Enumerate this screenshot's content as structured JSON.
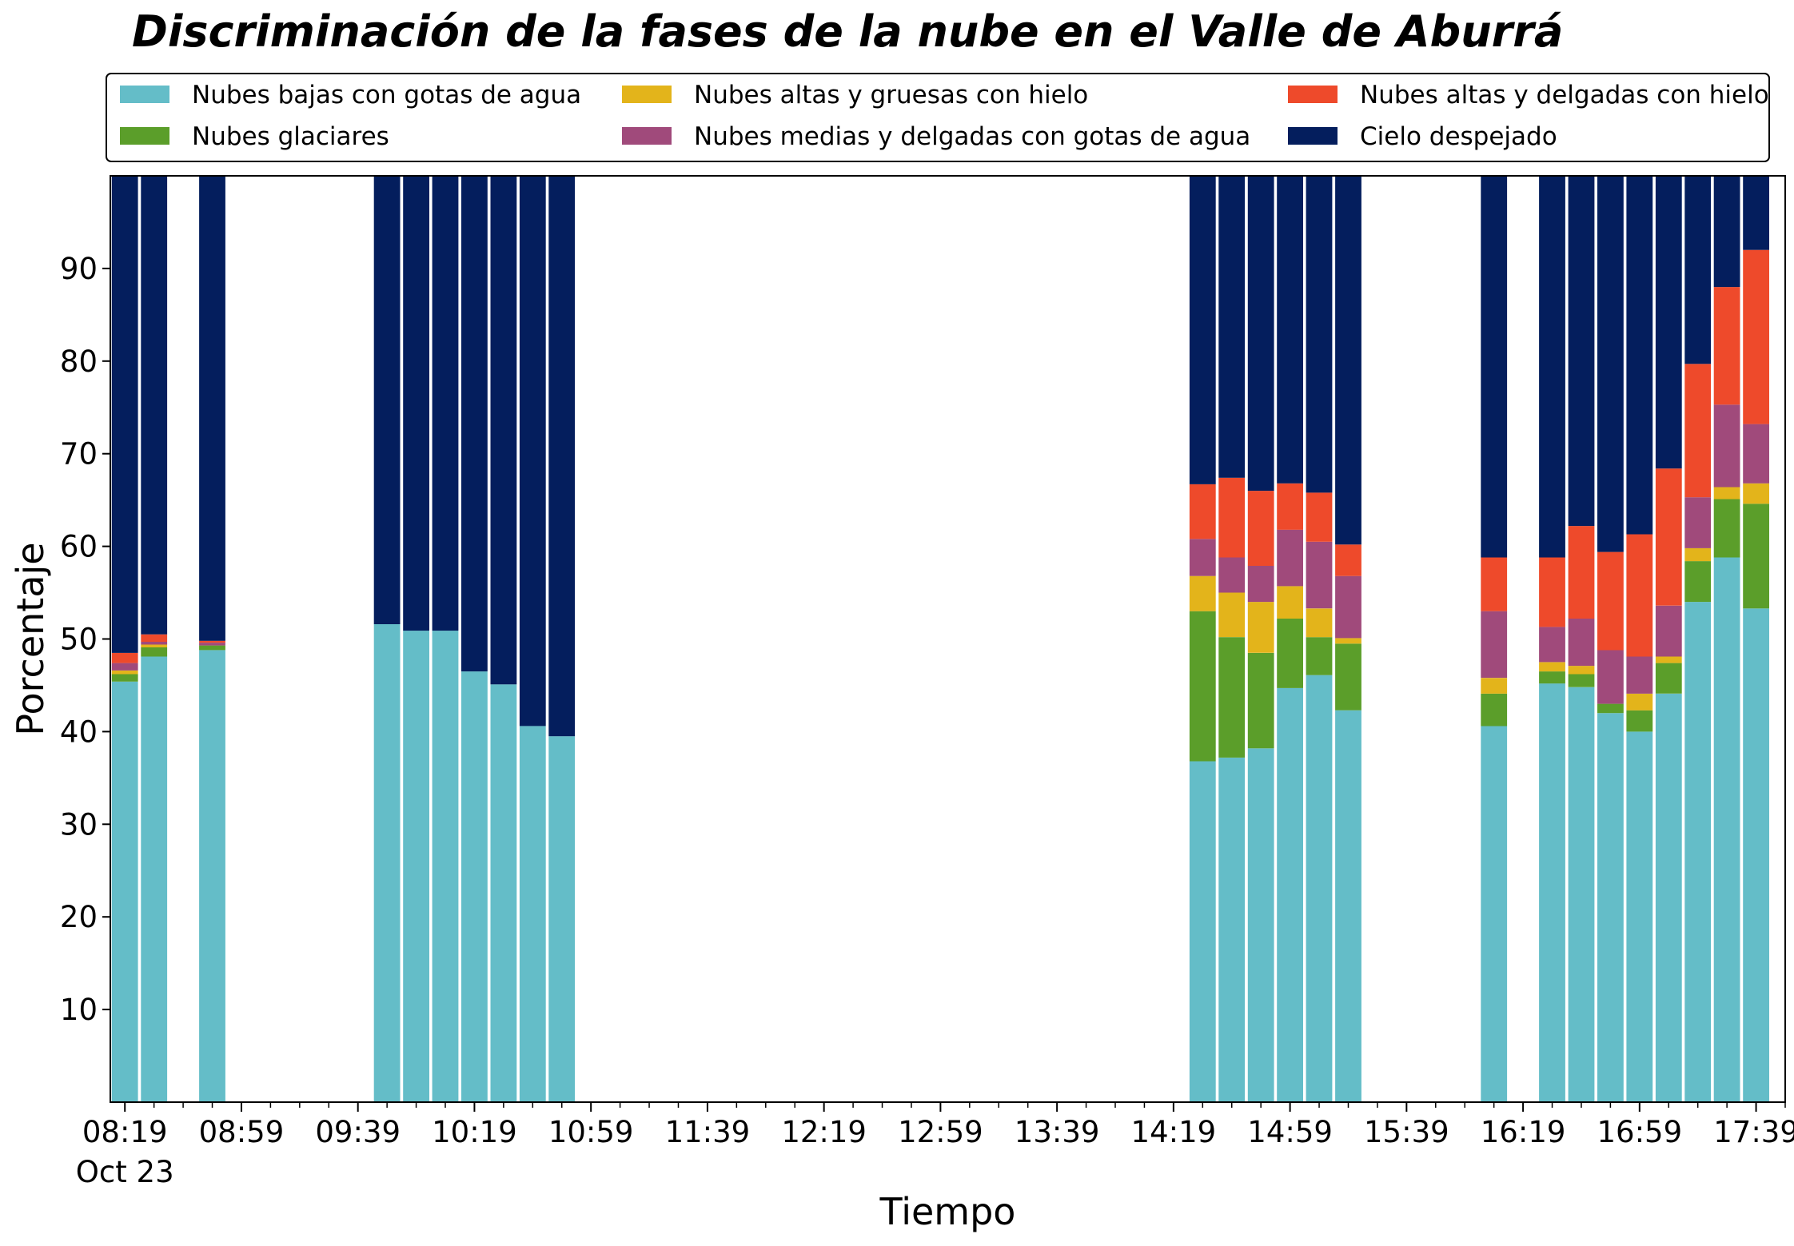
{
  "chart_data": {
    "type": "bar",
    "stacked": true,
    "title": "Discriminación de la fases de la nube en el Valle de Aburrá",
    "xlabel": "Tiempo",
    "ylabel": "Porcentaje",
    "ylim": [
      0,
      100
    ],
    "yticks": [
      10,
      20,
      30,
      40,
      50,
      60,
      70,
      80,
      90
    ],
    "xlim": [
      "08:14",
      "17:49"
    ],
    "xticks": [
      "08:19",
      "08:59",
      "09:39",
      "10:19",
      "10:59",
      "11:39",
      "12:19",
      "12:59",
      "13:39",
      "14:19",
      "14:59",
      "15:39",
      "16:19",
      "16:59",
      "17:39"
    ],
    "xtick_sublabel": "Oct 23",
    "minor_tick_step_minutes": 10,
    "bar_width_minutes": 9,
    "grid": false,
    "legend_position": "top",
    "legend_columns": 3,
    "times": [
      "08:19",
      "08:29",
      "08:49",
      "09:49",
      "09:59",
      "10:09",
      "10:19",
      "10:29",
      "10:39",
      "10:49",
      "14:29",
      "14:39",
      "14:49",
      "14:59",
      "15:09",
      "15:19",
      "15:29",
      "16:09",
      "16:29",
      "16:39",
      "16:49",
      "16:59",
      "17:09",
      "17:19",
      "17:29",
      "17:39"
    ],
    "series": [
      {
        "name": "Nubes bajas con gotas de agua",
        "color": "#64BDC8",
        "values": [
          45.4,
          48.1,
          48.8,
          51.6,
          50.9,
          50.9,
          46.5,
          45.1,
          40.6,
          39.5,
          36.8,
          37.2,
          38.2,
          44.7,
          46.1,
          42.3,
          0,
          40.6,
          45.2,
          44.8,
          42.0,
          40.0,
          44.1,
          54.0,
          58.8,
          53.3
        ]
      },
      {
        "name": "Nubes glaciares",
        "color": "#5B9E2A",
        "values": [
          0.8,
          1.0,
          0.5,
          0,
          0,
          0,
          0,
          0,
          0,
          0,
          16.2,
          13.0,
          10.3,
          7.5,
          4.1,
          7.2,
          0,
          3.5,
          1.3,
          1.4,
          1.0,
          2.3,
          3.3,
          4.4,
          6.3,
          11.3
        ]
      },
      {
        "name": "Nubes altas y gruesas con hielo",
        "color": "#E3B41B",
        "values": [
          0.4,
          0.3,
          0,
          0,
          0,
          0,
          0,
          0,
          0,
          0,
          3.8,
          4.8,
          5.5,
          3.5,
          3.1,
          0.6,
          0,
          1.7,
          1.0,
          0.9,
          0,
          1.8,
          0.7,
          1.4,
          1.3,
          2.2
        ]
      },
      {
        "name": "Nubes medias y delgadas con gotas de agua",
        "color": "#A04A7B",
        "values": [
          0.8,
          0.3,
          0.3,
          0,
          0,
          0,
          0,
          0,
          0,
          0,
          4.0,
          3.8,
          3.9,
          6.1,
          7.2,
          6.7,
          0,
          7.2,
          3.8,
          5.1,
          5.8,
          4.0,
          5.5,
          5.5,
          8.9,
          6.4
        ]
      },
      {
        "name": "Nubes altas y delgadas con hielo",
        "color": "#EE4A2B",
        "values": [
          1.1,
          0.8,
          0.2,
          0,
          0,
          0,
          0,
          0,
          0,
          0,
          5.9,
          8.6,
          8.1,
          5.0,
          5.3,
          3.4,
          0,
          5.8,
          7.5,
          10.0,
          10.6,
          13.2,
          14.8,
          14.4,
          12.7,
          18.8
        ]
      },
      {
        "name": "Cielo despejado",
        "color": "#041E5D",
        "values": [
          51.5,
          49.5,
          50.2,
          48.4,
          49.1,
          49.1,
          53.5,
          54.9,
          59.4,
          60.5,
          33.3,
          32.6,
          34.0,
          33.2,
          34.2,
          39.8,
          0,
          41.2,
          41.2,
          37.8,
          40.6,
          38.7,
          31.6,
          20.3,
          12.0,
          8.0
        ]
      }
    ]
  }
}
